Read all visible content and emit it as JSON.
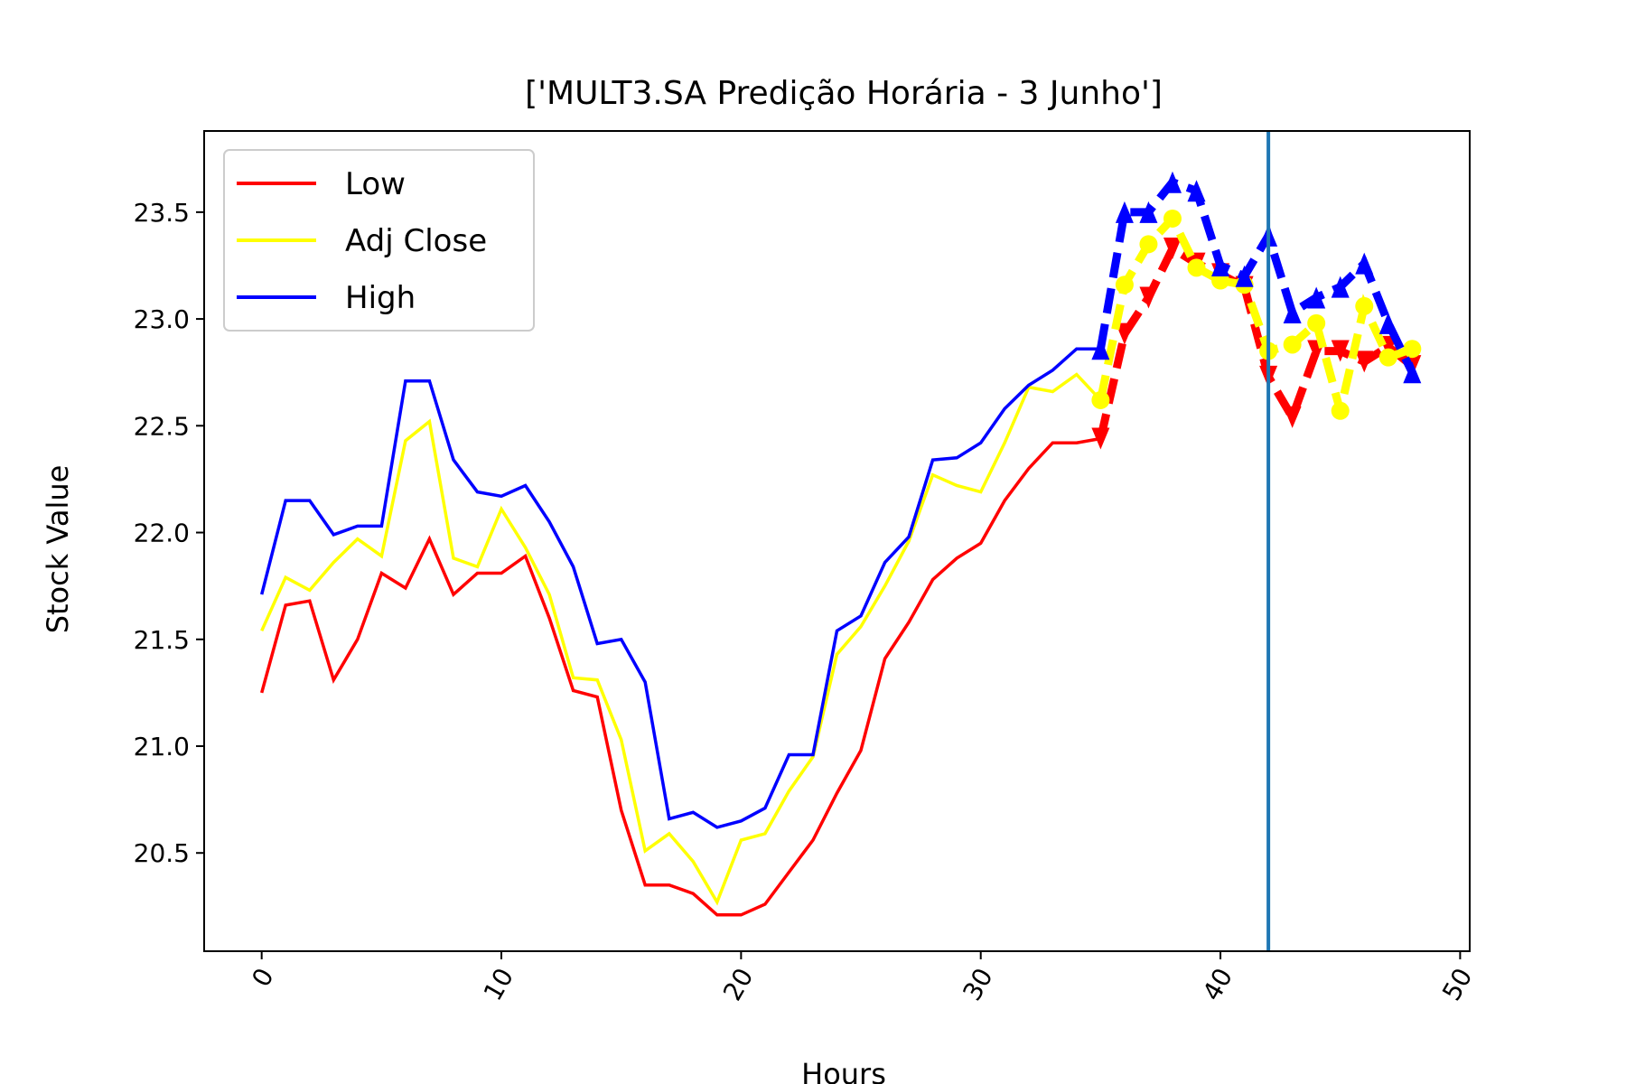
{
  "chart_data": {
    "type": "line",
    "title": "['MULT3.SA Predição Horária - 3 Junho']",
    "xlabel": "Hours",
    "ylabel": "Stock Value",
    "xlim": [
      -2.4,
      50.4
    ],
    "ylim": [
      20.04,
      23.88
    ],
    "xticks": [
      "0",
      "10",
      "20",
      "30",
      "40",
      "50"
    ],
    "xtick_values": [
      0,
      10,
      20,
      30,
      40,
      50
    ],
    "yticks": [
      "20.5",
      "21.0",
      "21.5",
      "22.0",
      "22.5",
      "23.0",
      "23.5"
    ],
    "ytick_values": [
      20.5,
      21.0,
      21.5,
      22.0,
      22.5,
      23.0,
      23.5
    ],
    "grid": false,
    "legend_position": "top-left",
    "vline": {
      "x": 42,
      "color": "#1f77b4"
    },
    "series": [
      {
        "name": "Low",
        "color": "#ff0000",
        "values": [
          21.25,
          21.66,
          21.68,
          21.31,
          21.5,
          21.81,
          21.74,
          21.97,
          21.71,
          21.81,
          21.81,
          21.89,
          21.6,
          21.26,
          21.23,
          20.7,
          20.35,
          20.35,
          20.31,
          20.21,
          20.21,
          20.26,
          20.41,
          20.56,
          20.78,
          20.98,
          21.41,
          21.58,
          21.78,
          21.88,
          21.95,
          22.15,
          22.3,
          22.42,
          22.42,
          22.44
        ]
      },
      {
        "name": "Adj Close",
        "color": "#ffff00",
        "values": [
          21.54,
          21.79,
          21.73,
          21.86,
          21.97,
          21.89,
          22.43,
          22.52,
          21.88,
          21.84,
          22.11,
          21.93,
          21.71,
          21.32,
          21.31,
          21.03,
          20.51,
          20.59,
          20.46,
          20.27,
          20.56,
          20.59,
          20.79,
          20.95,
          21.43,
          21.56,
          21.75,
          21.96,
          22.27,
          22.22,
          22.19,
          22.42,
          22.68,
          22.66,
          22.74,
          22.62
        ]
      },
      {
        "name": "High",
        "color": "#0000ff",
        "values": [
          21.71,
          22.15,
          22.15,
          21.99,
          22.03,
          22.03,
          22.71,
          22.71,
          22.34,
          22.19,
          22.17,
          22.22,
          22.05,
          21.84,
          21.48,
          21.5,
          21.3,
          20.66,
          20.69,
          20.62,
          20.65,
          20.71,
          20.96,
          20.96,
          21.54,
          21.61,
          21.86,
          21.98,
          22.34,
          22.35,
          22.42,
          22.58,
          22.69,
          22.76,
          22.86,
          22.86
        ]
      }
    ],
    "prediction_series": [
      {
        "of": "Low",
        "color": "#ff0000",
        "x": [
          35,
          36,
          37,
          38,
          39,
          40,
          41,
          42,
          43,
          44,
          45,
          46,
          47,
          48
        ],
        "values": [
          22.44,
          22.93,
          23.1,
          23.33,
          23.26,
          23.21,
          23.15,
          22.73,
          22.54,
          22.85,
          22.85,
          22.8,
          22.87,
          22.78
        ]
      },
      {
        "of": "Adj Close",
        "color": "#ffff00",
        "x": [
          35,
          36,
          37,
          38,
          39,
          40,
          41,
          42,
          43,
          44,
          45,
          46,
          47,
          48
        ],
        "values": [
          22.62,
          23.16,
          23.35,
          23.47,
          23.24,
          23.18,
          23.16,
          22.85,
          22.88,
          22.98,
          22.57,
          23.06,
          22.82,
          22.86
        ]
      },
      {
        "of": "High",
        "color": "#0000ff",
        "x": [
          35,
          36,
          37,
          38,
          39,
          40,
          41,
          42,
          43,
          44,
          45,
          46,
          47,
          48
        ],
        "values": [
          22.86,
          23.5,
          23.5,
          23.64,
          23.6,
          23.25,
          23.2,
          23.39,
          23.03,
          23.1,
          23.15,
          23.26,
          22.98,
          22.75
        ]
      }
    ]
  }
}
